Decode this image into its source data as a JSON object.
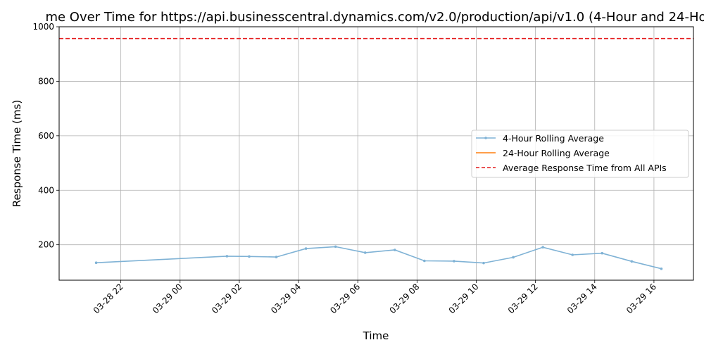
{
  "chart_data": {
    "type": "line",
    "title": "me Over Time for https://api.businesscentral.dynamics.com/v2.0/production/api/v1.0 (4-Hour and 24-Ho",
    "xlabel": "Time",
    "ylabel": "Response Time (ms)",
    "xlim": [
      "2025-03-28T19:55",
      "2025-03-29T17:20"
    ],
    "ylim": [
      70,
      1000
    ],
    "x_ticks": [
      {
        "t": "2025-03-28T22:00",
        "label": "03-28 22"
      },
      {
        "t": "2025-03-29T00:00",
        "label": "03-29 00"
      },
      {
        "t": "2025-03-29T02:00",
        "label": "03-29 02"
      },
      {
        "t": "2025-03-29T04:00",
        "label": "03-29 04"
      },
      {
        "t": "2025-03-29T06:00",
        "label": "03-29 06"
      },
      {
        "t": "2025-03-29T08:00",
        "label": "03-29 08"
      },
      {
        "t": "2025-03-29T10:00",
        "label": "03-29 10"
      },
      {
        "t": "2025-03-29T12:00",
        "label": "03-29 12"
      },
      {
        "t": "2025-03-29T14:00",
        "label": "03-29 14"
      },
      {
        "t": "2025-03-29T16:00",
        "label": "03-29 16"
      }
    ],
    "y_ticks": [
      200,
      400,
      600,
      800,
      1000
    ],
    "grid": true,
    "legend_position": "center-right",
    "series": [
      {
        "name": "4-Hour Rolling Average",
        "color": "#7fb2d5",
        "marker": true,
        "points": [
          {
            "t": "2025-03-28T21:10",
            "y": 134
          },
          {
            "t": "2025-03-29T01:35",
            "y": 158
          },
          {
            "t": "2025-03-29T02:20",
            "y": 157
          },
          {
            "t": "2025-03-29T03:15",
            "y": 155
          },
          {
            "t": "2025-03-29T04:15",
            "y": 186
          },
          {
            "t": "2025-03-29T05:15",
            "y": 193
          },
          {
            "t": "2025-03-29T06:15",
            "y": 171
          },
          {
            "t": "2025-03-29T07:15",
            "y": 181
          },
          {
            "t": "2025-03-29T08:15",
            "y": 141
          },
          {
            "t": "2025-03-29T09:15",
            "y": 140
          },
          {
            "t": "2025-03-29T10:15",
            "y": 133
          },
          {
            "t": "2025-03-29T11:15",
            "y": 154
          },
          {
            "t": "2025-03-29T12:15",
            "y": 191
          },
          {
            "t": "2025-03-29T13:15",
            "y": 163
          },
          {
            "t": "2025-03-29T14:15",
            "y": 169
          },
          {
            "t": "2025-03-29T15:15",
            "y": 139
          },
          {
            "t": "2025-03-29T16:15",
            "y": 112
          }
        ]
      },
      {
        "name": "24-Hour Rolling Average",
        "color": "#ff7f0e",
        "marker": false,
        "points": []
      },
      {
        "name": "Average Response Time from All APIs",
        "color": "#e41a1c",
        "style": "dashed",
        "value": 957
      }
    ]
  }
}
